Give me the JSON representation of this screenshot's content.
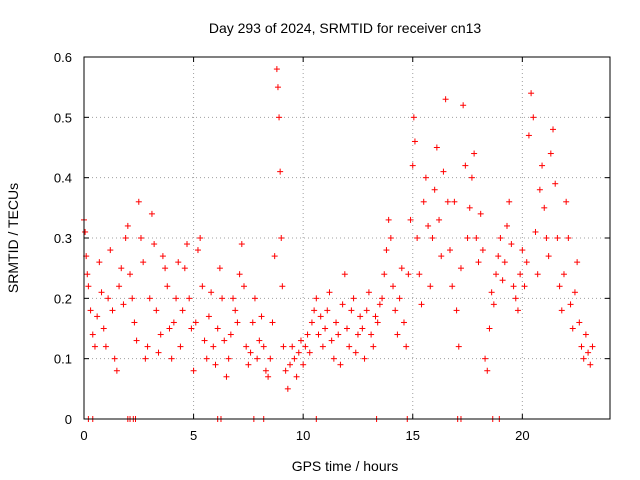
{
  "chart_data": {
    "type": "scatter",
    "title": "Day 293 of 2024, SRMTID for receiver cn13",
    "xlabel": "GPS time / hours",
    "ylabel": "SRMTID / TECUs",
    "xlim": [
      0,
      24
    ],
    "ylim": [
      0,
      0.6
    ],
    "xticks": [
      0,
      5,
      10,
      15,
      20
    ],
    "xtick_labels": [
      "0",
      "5",
      "10",
      "15",
      "20"
    ],
    "yticks": [
      0,
      0.1,
      0.2,
      0.3,
      0.4,
      0.5,
      0.6
    ],
    "ytick_labels": [
      "0",
      "0.1",
      "0.2",
      "0.3",
      "0.4",
      "0.5",
      "0.6"
    ],
    "grid": true,
    "marker": "plus",
    "color": "#ff0000",
    "series": [
      {
        "name": "SRMTID",
        "points": [
          [
            0.0,
            0.33
          ],
          [
            0.05,
            0.31
          ],
          [
            0.1,
            0.27
          ],
          [
            0.15,
            0.24
          ],
          [
            0.2,
            0.22
          ],
          [
            0.3,
            0.18
          ],
          [
            0.4,
            0.14
          ],
          [
            0.5,
            0.12
          ],
          [
            0.6,
            0.17
          ],
          [
            0.7,
            0.26
          ],
          [
            0.8,
            0.21
          ],
          [
            0.9,
            0.15
          ],
          [
            1.0,
            0.12
          ],
          [
            1.1,
            0.2
          ],
          [
            1.2,
            0.28
          ],
          [
            1.3,
            0.18
          ],
          [
            1.4,
            0.1
          ],
          [
            1.5,
            0.08
          ],
          [
            1.6,
            0.22
          ],
          [
            1.7,
            0.25
          ],
          [
            1.8,
            0.19
          ],
          [
            1.9,
            0.3
          ],
          [
            2.0,
            0.32
          ],
          [
            2.1,
            0.24
          ],
          [
            2.2,
            0.2
          ],
          [
            2.3,
            0.16
          ],
          [
            2.4,
            0.13
          ],
          [
            2.5,
            0.36
          ],
          [
            2.6,
            0.3
          ],
          [
            2.7,
            0.26
          ],
          [
            2.8,
            0.1
          ],
          [
            2.9,
            0.12
          ],
          [
            3.0,
            0.2
          ],
          [
            3.1,
            0.34
          ],
          [
            3.2,
            0.29
          ],
          [
            3.3,
            0.18
          ],
          [
            3.4,
            0.11
          ],
          [
            3.5,
            0.14
          ],
          [
            3.6,
            0.27
          ],
          [
            3.7,
            0.25
          ],
          [
            3.8,
            0.22
          ],
          [
            3.9,
            0.15
          ],
          [
            4.0,
            0.1
          ],
          [
            4.1,
            0.16
          ],
          [
            4.2,
            0.2
          ],
          [
            4.3,
            0.26
          ],
          [
            4.4,
            0.12
          ],
          [
            4.5,
            0.18
          ],
          [
            4.6,
            0.25
          ],
          [
            4.7,
            0.29
          ],
          [
            4.8,
            0.2
          ],
          [
            4.9,
            0.15
          ],
          [
            5.0,
            0.08
          ],
          [
            5.1,
            0.16
          ],
          [
            5.2,
            0.28
          ],
          [
            5.3,
            0.3
          ],
          [
            5.4,
            0.22
          ],
          [
            5.5,
            0.13
          ],
          [
            5.6,
            0.1
          ],
          [
            5.7,
            0.17
          ],
          [
            5.8,
            0.21
          ],
          [
            5.9,
            0.12
          ],
          [
            6.0,
            0.09
          ],
          [
            6.1,
            0.15
          ],
          [
            6.2,
            0.25
          ],
          [
            6.3,
            0.2
          ],
          [
            6.4,
            0.13
          ],
          [
            6.5,
            0.07
          ],
          [
            6.6,
            0.1
          ],
          [
            6.7,
            0.14
          ],
          [
            6.8,
            0.2
          ],
          [
            6.9,
            0.18
          ],
          [
            7.0,
            0.16
          ],
          [
            7.1,
            0.24
          ],
          [
            7.2,
            0.29
          ],
          [
            7.3,
            0.22
          ],
          [
            7.4,
            0.12
          ],
          [
            7.5,
            0.09
          ],
          [
            7.6,
            0.11
          ],
          [
            7.7,
            0.16
          ],
          [
            7.8,
            0.2
          ],
          [
            7.9,
            0.1
          ],
          [
            8.0,
            0.13
          ],
          [
            8.1,
            0.17
          ],
          [
            8.2,
            0.12
          ],
          [
            8.3,
            0.08
          ],
          [
            8.4,
            0.07
          ],
          [
            8.5,
            0.1
          ],
          [
            8.6,
            0.16
          ],
          [
            8.7,
            0.27
          ],
          [
            8.8,
            0.58
          ],
          [
            8.85,
            0.55
          ],
          [
            8.9,
            0.5
          ],
          [
            8.95,
            0.41
          ],
          [
            9.0,
            0.3
          ],
          [
            9.05,
            0.22
          ],
          [
            9.1,
            0.12
          ],
          [
            9.2,
            0.08
          ],
          [
            9.3,
            0.05
          ],
          [
            9.4,
            0.09
          ],
          [
            9.5,
            0.12
          ],
          [
            9.6,
            0.1
          ],
          [
            9.7,
            0.07
          ],
          [
            9.8,
            0.11
          ],
          [
            9.9,
            0.13
          ],
          [
            10.0,
            0.09
          ],
          [
            10.1,
            0.12
          ],
          [
            10.2,
            0.14
          ],
          [
            10.3,
            0.11
          ],
          [
            10.4,
            0.16
          ],
          [
            10.5,
            0.18
          ],
          [
            10.6,
            0.2
          ],
          [
            10.7,
            0.14
          ],
          [
            10.8,
            0.17
          ],
          [
            10.9,
            0.12
          ],
          [
            11.0,
            0.15
          ],
          [
            11.1,
            0.18
          ],
          [
            11.2,
            0.21
          ],
          [
            11.3,
            0.13
          ],
          [
            11.4,
            0.1
          ],
          [
            11.5,
            0.16
          ],
          [
            11.6,
            0.14
          ],
          [
            11.7,
            0.09
          ],
          [
            11.8,
            0.19
          ],
          [
            11.9,
            0.24
          ],
          [
            12.0,
            0.15
          ],
          [
            12.1,
            0.12
          ],
          [
            12.2,
            0.18
          ],
          [
            12.3,
            0.2
          ],
          [
            12.4,
            0.11
          ],
          [
            12.5,
            0.14
          ],
          [
            12.6,
            0.17
          ],
          [
            12.7,
            0.15
          ],
          [
            12.8,
            0.1
          ],
          [
            12.9,
            0.18
          ],
          [
            13.0,
            0.21
          ],
          [
            13.1,
            0.14
          ],
          [
            13.2,
            0.12
          ],
          [
            13.3,
            0.17
          ],
          [
            13.4,
            0.16
          ],
          [
            13.5,
            0.19
          ],
          [
            13.6,
            0.2
          ],
          [
            13.7,
            0.24
          ],
          [
            13.8,
            0.28
          ],
          [
            13.9,
            0.33
          ],
          [
            14.0,
            0.3
          ],
          [
            14.1,
            0.22
          ],
          [
            14.2,
            0.18
          ],
          [
            14.3,
            0.14
          ],
          [
            14.4,
            0.2
          ],
          [
            14.5,
            0.25
          ],
          [
            14.6,
            0.16
          ],
          [
            14.7,
            0.12
          ],
          [
            14.8,
            0.24
          ],
          [
            14.9,
            0.33
          ],
          [
            15.0,
            0.42
          ],
          [
            15.05,
            0.5
          ],
          [
            15.1,
            0.46
          ],
          [
            15.2,
            0.3
          ],
          [
            15.3,
            0.24
          ],
          [
            15.4,
            0.19
          ],
          [
            15.5,
            0.36
          ],
          [
            15.6,
            0.4
          ],
          [
            15.7,
            0.32
          ],
          [
            15.8,
            0.22
          ],
          [
            15.9,
            0.3
          ],
          [
            16.0,
            0.38
          ],
          [
            16.1,
            0.45
          ],
          [
            16.2,
            0.33
          ],
          [
            16.3,
            0.27
          ],
          [
            16.4,
            0.41
          ],
          [
            16.5,
            0.53
          ],
          [
            16.6,
            0.36
          ],
          [
            16.7,
            0.28
          ],
          [
            16.8,
            0.22
          ],
          [
            16.9,
            0.36
          ],
          [
            17.0,
            0.18
          ],
          [
            17.1,
            0.12
          ],
          [
            17.2,
            0.25
          ],
          [
            17.3,
            0.52
          ],
          [
            17.4,
            0.42
          ],
          [
            17.5,
            0.3
          ],
          [
            17.6,
            0.35
          ],
          [
            17.7,
            0.4
          ],
          [
            17.8,
            0.44
          ],
          [
            17.9,
            0.3
          ],
          [
            18.0,
            0.26
          ],
          [
            18.1,
            0.34
          ],
          [
            18.2,
            0.28
          ],
          [
            18.3,
            0.1
          ],
          [
            18.4,
            0.08
          ],
          [
            18.5,
            0.15
          ],
          [
            18.6,
            0.21
          ],
          [
            18.7,
            0.19
          ],
          [
            18.8,
            0.24
          ],
          [
            18.9,
            0.27
          ],
          [
            19.0,
            0.3
          ],
          [
            19.1,
            0.23
          ],
          [
            19.2,
            0.26
          ],
          [
            19.3,
            0.32
          ],
          [
            19.4,
            0.36
          ],
          [
            19.5,
            0.29
          ],
          [
            19.6,
            0.22
          ],
          [
            19.7,
            0.2
          ],
          [
            19.8,
            0.18
          ],
          [
            19.9,
            0.24
          ],
          [
            20.0,
            0.28
          ],
          [
            20.1,
            0.22
          ],
          [
            20.2,
            0.26
          ],
          [
            20.3,
            0.47
          ],
          [
            20.4,
            0.54
          ],
          [
            20.5,
            0.5
          ],
          [
            20.6,
            0.31
          ],
          [
            20.7,
            0.24
          ],
          [
            20.8,
            0.38
          ],
          [
            20.9,
            0.42
          ],
          [
            21.0,
            0.35
          ],
          [
            21.1,
            0.3
          ],
          [
            21.2,
            0.27
          ],
          [
            21.3,
            0.44
          ],
          [
            21.4,
            0.48
          ],
          [
            21.5,
            0.39
          ],
          [
            21.6,
            0.3
          ],
          [
            21.7,
            0.22
          ],
          [
            21.8,
            0.18
          ],
          [
            21.9,
            0.24
          ],
          [
            22.0,
            0.36
          ],
          [
            22.1,
            0.3
          ],
          [
            22.2,
            0.19
          ],
          [
            22.3,
            0.15
          ],
          [
            22.4,
            0.21
          ],
          [
            22.5,
            0.26
          ],
          [
            22.6,
            0.16
          ],
          [
            22.7,
            0.12
          ],
          [
            22.8,
            0.1
          ],
          [
            22.9,
            0.14
          ],
          [
            23.0,
            0.11
          ],
          [
            23.1,
            0.09
          ],
          [
            23.2,
            0.12
          ]
        ]
      }
    ],
    "baseline_gaps": [
      0.2,
      0.4,
      2.0,
      2.1,
      2.25,
      2.35,
      6.1,
      6.25,
      7.75,
      8.2,
      10.6,
      13.35,
      14.75,
      17.05,
      17.2,
      18.65,
      18.95
    ]
  }
}
